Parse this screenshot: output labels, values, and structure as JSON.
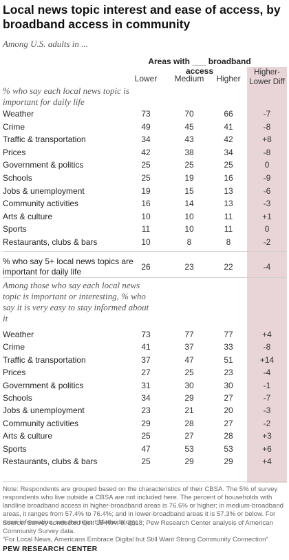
{
  "title": "Local news topic interest and ease of access, by broadband access in community",
  "subtitle": "Among U.S. adults in ...",
  "header": {
    "areas": "Areas with ___ broadband access",
    "lower": "Lower",
    "medium": "Medium",
    "higher": "Higher",
    "diff": "Higher-Lower Diff"
  },
  "chart_data": {
    "type": "table",
    "columns": [
      "Lower",
      "Medium",
      "Higher",
      "Higher-Lower Diff"
    ],
    "sections": [
      {
        "label": "% who say each local news topic is important for daily life",
        "rows": [
          {
            "topic": "Weather",
            "lower": "73",
            "medium": "70",
            "higher": "66",
            "diff": "-7"
          },
          {
            "topic": "Crime",
            "lower": "49",
            "medium": "45",
            "higher": "41",
            "diff": "-8"
          },
          {
            "topic": "Traffic & transportation",
            "lower": "34",
            "medium": "43",
            "higher": "42",
            "diff": "+8"
          },
          {
            "topic": "Prices",
            "lower": "42",
            "medium": "38",
            "higher": "34",
            "diff": "-8"
          },
          {
            "topic": "Government & politics",
            "lower": "25",
            "medium": "25",
            "higher": "25",
            "diff": "0"
          },
          {
            "topic": "Schools",
            "lower": "25",
            "medium": "19",
            "higher": "16",
            "diff": "-9"
          },
          {
            "topic": "Jobs & unemployment",
            "lower": "19",
            "medium": "15",
            "higher": "13",
            "diff": "-6"
          },
          {
            "topic": "Community activities",
            "lower": "16",
            "medium": "14",
            "higher": "13",
            "diff": "-3"
          },
          {
            "topic": "Arts & culture",
            "lower": "10",
            "medium": "10",
            "higher": "11",
            "diff": "+1"
          },
          {
            "topic": "Sports",
            "lower": "11",
            "medium": "10",
            "higher": "11",
            "diff": "0"
          },
          {
            "topic": "Restaurants, clubs & bars",
            "lower": "10",
            "medium": "8",
            "higher": "8",
            "diff": "-2"
          }
        ]
      },
      {
        "label": "% who say 5+ local news topics are important for daily life",
        "rows": [
          {
            "topic": "% who say 5+ local news topics are important for daily life",
            "lower": "26",
            "medium": "23",
            "higher": "22",
            "diff": "-4"
          }
        ]
      },
      {
        "label": "Among those who say each local news topic is important or interesting, % who say it is very easy to stay informed about it",
        "rows": [
          {
            "topic": "Weather",
            "lower": "73",
            "medium": "77",
            "higher": "77",
            "diff": "+4"
          },
          {
            "topic": "Crime",
            "lower": "41",
            "medium": "37",
            "higher": "33",
            "diff": "-8"
          },
          {
            "topic": "Traffic & transportation",
            "lower": "37",
            "medium": "47",
            "higher": "51",
            "diff": "+14"
          },
          {
            "topic": "Prices",
            "lower": "27",
            "medium": "25",
            "higher": "23",
            "diff": "-4"
          },
          {
            "topic": "Government & politics",
            "lower": "31",
            "medium": "30",
            "higher": "30",
            "diff": "-1"
          },
          {
            "topic": "Schools",
            "lower": "34",
            "medium": "29",
            "higher": "27",
            "diff": "-7"
          },
          {
            "topic": "Jobs & unemployment",
            "lower": "23",
            "medium": "21",
            "higher": "20",
            "diff": "-3"
          },
          {
            "topic": "Community activities",
            "lower": "29",
            "medium": "28",
            "higher": "27",
            "diff": "-2"
          },
          {
            "topic": "Arts & culture",
            "lower": "25",
            "medium": "27",
            "higher": "28",
            "diff": "+3"
          },
          {
            "topic": "Sports",
            "lower": "47",
            "medium": "53",
            "higher": "53",
            "diff": "+6"
          },
          {
            "topic": "Restaurants, clubs & bars",
            "lower": "25",
            "medium": "29",
            "higher": "29",
            "diff": "+4"
          }
        ]
      }
    ]
  },
  "note": "Note: Respondents are grouped based on the characteristics of their CBSA. The 5% of survey respondents who live outside a CBSA are not included here. The percent of households with landline broadband access in higher-broadband areas is 76.6% or higher; in medium-broadband areas, it ranges from 57.4% to 76.4%; and in lower-broadband areas it is 57.3% or below. For more information, see the report Methodology.",
  "source": "Source: Survey conducted Oct. 15-Nov. 8, 2018; Pew Research Center analysis of American Community Survey data.",
  "report": "“For Local News, Americans Embrace Digital but Still Want Strong Community Connection”",
  "footer": "PEW RESEARCH CENTER"
}
